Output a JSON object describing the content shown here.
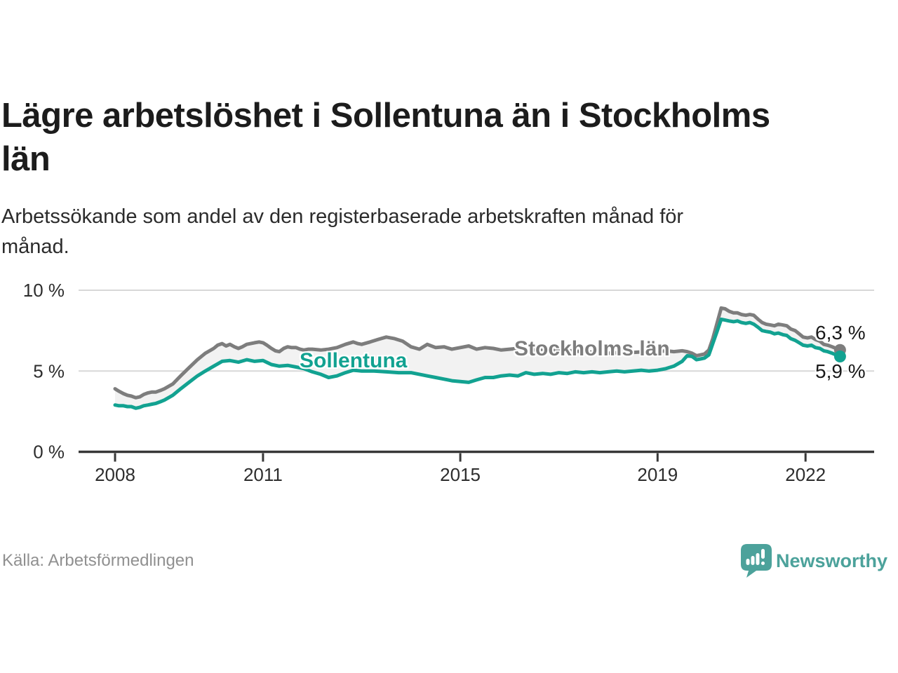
{
  "header": {
    "title_lines": [
      "Lägre arbetslöshet i Sollentuna än i Stockholms",
      "län"
    ],
    "subtitle_lines": [
      "Arbetssökande som andel av den registerbaserade arbetskraften månad för",
      "månad."
    ]
  },
  "footer": {
    "source": "Källa: Arbetsförmedlingen",
    "brand": "Newsworthy"
  },
  "colors": {
    "sollentuna": "#12A291",
    "stockholm": "#7D7D7D",
    "band": "#F2F2F2",
    "grid": "#D8D8D8",
    "axis": "#383838",
    "tick_text": "#2D2D2D",
    "end_label_text": "#1A1A1A",
    "source_text": "#909090",
    "brand_teal": "#4CA29B"
  },
  "chart_data": {
    "type": "line",
    "title": "Lägre arbetslöshet i Sollentuna än i Stockholms län",
    "subtitle": "Arbetssökande som andel av den registerbaserade arbetskraften månad för månad.",
    "x_unit": "decimal year (monthly observations)",
    "y_unit": "percent of registered labour force",
    "xlim": [
      2007.75,
      2023.4
    ],
    "ylim": [
      0,
      10
    ],
    "grid": "horizontal gridlines at 5% and 10%, dark baseline at 0%",
    "legend": "inline labels on lines, value labels at line ends",
    "xticks": [
      {
        "value": 2008,
        "label": "2008"
      },
      {
        "value": 2011,
        "label": "2011"
      },
      {
        "value": 2015,
        "label": "2015"
      },
      {
        "value": 2019,
        "label": "2019"
      },
      {
        "value": 2022,
        "label": "2022"
      }
    ],
    "yticks": [
      {
        "value": 0,
        "label": "0 %"
      },
      {
        "value": 5,
        "label": "5 %"
      },
      {
        "value": 10,
        "label": "10 %"
      }
    ],
    "series": [
      {
        "name": "Stockholms län",
        "color": "#7D7D7D",
        "end_label": "6,3 %",
        "end_value": 6.3,
        "points": [
          [
            2008.0,
            3.9
          ],
          [
            2008.08,
            3.75
          ],
          [
            2008.17,
            3.6
          ],
          [
            2008.25,
            3.5
          ],
          [
            2008.33,
            3.45
          ],
          [
            2008.42,
            3.35
          ],
          [
            2008.5,
            3.4
          ],
          [
            2008.58,
            3.55
          ],
          [
            2008.67,
            3.65
          ],
          [
            2008.75,
            3.7
          ],
          [
            2008.83,
            3.7
          ],
          [
            2008.92,
            3.8
          ],
          [
            2009.0,
            3.9
          ],
          [
            2009.17,
            4.2
          ],
          [
            2009.33,
            4.7
          ],
          [
            2009.5,
            5.2
          ],
          [
            2009.67,
            5.7
          ],
          [
            2009.83,
            6.1
          ],
          [
            2010.0,
            6.4
          ],
          [
            2010.08,
            6.6
          ],
          [
            2010.17,
            6.7
          ],
          [
            2010.25,
            6.55
          ],
          [
            2010.33,
            6.65
          ],
          [
            2010.42,
            6.5
          ],
          [
            2010.5,
            6.4
          ],
          [
            2010.58,
            6.5
          ],
          [
            2010.67,
            6.65
          ],
          [
            2010.75,
            6.7
          ],
          [
            2010.83,
            6.75
          ],
          [
            2010.92,
            6.8
          ],
          [
            2011.0,
            6.75
          ],
          [
            2011.08,
            6.6
          ],
          [
            2011.17,
            6.4
          ],
          [
            2011.25,
            6.25
          ],
          [
            2011.33,
            6.2
          ],
          [
            2011.42,
            6.4
          ],
          [
            2011.5,
            6.5
          ],
          [
            2011.58,
            6.45
          ],
          [
            2011.67,
            6.45
          ],
          [
            2011.75,
            6.35
          ],
          [
            2011.83,
            6.3
          ],
          [
            2011.92,
            6.35
          ],
          [
            2012.0,
            6.35
          ],
          [
            2012.17,
            6.3
          ],
          [
            2012.33,
            6.35
          ],
          [
            2012.5,
            6.45
          ],
          [
            2012.67,
            6.65
          ],
          [
            2012.83,
            6.8
          ],
          [
            2012.92,
            6.7
          ],
          [
            2013.0,
            6.65
          ],
          [
            2013.17,
            6.8
          ],
          [
            2013.33,
            6.95
          ],
          [
            2013.5,
            7.1
          ],
          [
            2013.67,
            7.0
          ],
          [
            2013.83,
            6.85
          ],
          [
            2014.0,
            6.5
          ],
          [
            2014.17,
            6.35
          ],
          [
            2014.33,
            6.65
          ],
          [
            2014.5,
            6.45
          ],
          [
            2014.67,
            6.5
          ],
          [
            2014.83,
            6.35
          ],
          [
            2015.0,
            6.45
          ],
          [
            2015.17,
            6.55
          ],
          [
            2015.33,
            6.35
          ],
          [
            2015.5,
            6.45
          ],
          [
            2015.67,
            6.4
          ],
          [
            2015.83,
            6.3
          ],
          [
            2016.0,
            6.35
          ],
          [
            2016.17,
            6.4
          ],
          [
            2016.33,
            6.3
          ],
          [
            2016.5,
            6.3
          ],
          [
            2016.67,
            6.35
          ],
          [
            2016.83,
            6.3
          ],
          [
            2017.0,
            6.25
          ],
          [
            2017.25,
            6.25
          ],
          [
            2017.5,
            6.2
          ],
          [
            2017.75,
            6.15
          ],
          [
            2018.0,
            6.1
          ],
          [
            2018.25,
            6.15
          ],
          [
            2018.5,
            6.15
          ],
          [
            2018.75,
            6.2
          ],
          [
            2019.0,
            6.2
          ],
          [
            2019.17,
            6.25
          ],
          [
            2019.33,
            6.2
          ],
          [
            2019.5,
            6.25
          ],
          [
            2019.6,
            6.2
          ],
          [
            2019.7,
            6.1
          ],
          [
            2019.79,
            5.95
          ],
          [
            2019.87,
            6.0
          ],
          [
            2019.95,
            6.05
          ],
          [
            2020.04,
            6.3
          ],
          [
            2020.12,
            7.0
          ],
          [
            2020.2,
            7.9
          ],
          [
            2020.29,
            8.9
          ],
          [
            2020.37,
            8.85
          ],
          [
            2020.45,
            8.7
          ],
          [
            2020.54,
            8.6
          ],
          [
            2020.62,
            8.6
          ],
          [
            2020.7,
            8.5
          ],
          [
            2020.79,
            8.45
          ],
          [
            2020.87,
            8.5
          ],
          [
            2020.95,
            8.45
          ],
          [
            2021.04,
            8.2
          ],
          [
            2021.12,
            8.0
          ],
          [
            2021.2,
            7.9
          ],
          [
            2021.29,
            7.85
          ],
          [
            2021.37,
            7.8
          ],
          [
            2021.45,
            7.9
          ],
          [
            2021.54,
            7.85
          ],
          [
            2021.62,
            7.8
          ],
          [
            2021.7,
            7.6
          ],
          [
            2021.79,
            7.5
          ],
          [
            2021.87,
            7.3
          ],
          [
            2021.95,
            7.1
          ],
          [
            2022.04,
            7.05
          ],
          [
            2022.12,
            7.1
          ],
          [
            2022.2,
            6.95
          ],
          [
            2022.29,
            6.85
          ],
          [
            2022.37,
            6.65
          ],
          [
            2022.45,
            6.6
          ],
          [
            2022.54,
            6.5
          ],
          [
            2022.62,
            6.4
          ],
          [
            2022.7,
            6.3
          ]
        ]
      },
      {
        "name": "Sollentuna",
        "color": "#12A291",
        "end_label": "5,9 %",
        "end_value": 5.9,
        "points": [
          [
            2008.0,
            2.9
          ],
          [
            2008.08,
            2.85
          ],
          [
            2008.17,
            2.85
          ],
          [
            2008.25,
            2.8
          ],
          [
            2008.33,
            2.8
          ],
          [
            2008.42,
            2.7
          ],
          [
            2008.5,
            2.75
          ],
          [
            2008.58,
            2.85
          ],
          [
            2008.67,
            2.9
          ],
          [
            2008.75,
            2.95
          ],
          [
            2008.83,
            3.0
          ],
          [
            2008.92,
            3.1
          ],
          [
            2009.0,
            3.2
          ],
          [
            2009.17,
            3.5
          ],
          [
            2009.33,
            3.9
          ],
          [
            2009.5,
            4.3
          ],
          [
            2009.67,
            4.7
          ],
          [
            2009.83,
            5.0
          ],
          [
            2010.0,
            5.3
          ],
          [
            2010.17,
            5.6
          ],
          [
            2010.33,
            5.65
          ],
          [
            2010.5,
            5.55
          ],
          [
            2010.67,
            5.7
          ],
          [
            2010.83,
            5.6
          ],
          [
            2011.0,
            5.65
          ],
          [
            2011.17,
            5.4
          ],
          [
            2011.33,
            5.3
          ],
          [
            2011.5,
            5.35
          ],
          [
            2011.67,
            5.25
          ],
          [
            2011.83,
            5.15
          ],
          [
            2012.0,
            4.95
          ],
          [
            2012.17,
            4.8
          ],
          [
            2012.33,
            4.6
          ],
          [
            2012.5,
            4.7
          ],
          [
            2012.67,
            4.9
          ],
          [
            2012.83,
            5.05
          ],
          [
            2013.0,
            5.0
          ],
          [
            2013.25,
            5.0
          ],
          [
            2013.5,
            4.95
          ],
          [
            2013.75,
            4.9
          ],
          [
            2014.0,
            4.9
          ],
          [
            2014.17,
            4.8
          ],
          [
            2014.33,
            4.7
          ],
          [
            2014.5,
            4.6
          ],
          [
            2014.67,
            4.5
          ],
          [
            2014.83,
            4.4
          ],
          [
            2015.0,
            4.35
          ],
          [
            2015.17,
            4.3
          ],
          [
            2015.33,
            4.45
          ],
          [
            2015.5,
            4.6
          ],
          [
            2015.67,
            4.6
          ],
          [
            2015.83,
            4.7
          ],
          [
            2016.0,
            4.75
          ],
          [
            2016.17,
            4.7
          ],
          [
            2016.33,
            4.9
          ],
          [
            2016.5,
            4.8
          ],
          [
            2016.67,
            4.85
          ],
          [
            2016.83,
            4.8
          ],
          [
            2017.0,
            4.9
          ],
          [
            2017.17,
            4.85
          ],
          [
            2017.33,
            4.95
          ],
          [
            2017.5,
            4.9
          ],
          [
            2017.67,
            4.95
          ],
          [
            2017.83,
            4.9
          ],
          [
            2018.0,
            4.95
          ],
          [
            2018.17,
            5.0
          ],
          [
            2018.33,
            4.95
          ],
          [
            2018.5,
            5.0
          ],
          [
            2018.67,
            5.05
          ],
          [
            2018.83,
            5.0
          ],
          [
            2019.0,
            5.05
          ],
          [
            2019.17,
            5.15
          ],
          [
            2019.33,
            5.3
          ],
          [
            2019.5,
            5.6
          ],
          [
            2019.6,
            5.95
          ],
          [
            2019.7,
            5.9
          ],
          [
            2019.79,
            5.7
          ],
          [
            2019.87,
            5.75
          ],
          [
            2019.95,
            5.8
          ],
          [
            2020.04,
            6.0
          ],
          [
            2020.12,
            6.7
          ],
          [
            2020.2,
            7.4
          ],
          [
            2020.29,
            8.2
          ],
          [
            2020.37,
            8.15
          ],
          [
            2020.45,
            8.1
          ],
          [
            2020.54,
            8.05
          ],
          [
            2020.62,
            8.1
          ],
          [
            2020.7,
            8.0
          ],
          [
            2020.79,
            7.95
          ],
          [
            2020.87,
            8.0
          ],
          [
            2020.95,
            7.9
          ],
          [
            2021.04,
            7.7
          ],
          [
            2021.12,
            7.5
          ],
          [
            2021.2,
            7.45
          ],
          [
            2021.29,
            7.4
          ],
          [
            2021.37,
            7.3
          ],
          [
            2021.45,
            7.35
          ],
          [
            2021.54,
            7.25
          ],
          [
            2021.62,
            7.2
          ],
          [
            2021.7,
            7.0
          ],
          [
            2021.79,
            6.9
          ],
          [
            2021.87,
            6.75
          ],
          [
            2021.95,
            6.6
          ],
          [
            2022.04,
            6.55
          ],
          [
            2022.12,
            6.6
          ],
          [
            2022.2,
            6.45
          ],
          [
            2022.29,
            6.4
          ],
          [
            2022.37,
            6.25
          ],
          [
            2022.45,
            6.2
          ],
          [
            2022.54,
            6.1
          ],
          [
            2022.62,
            6.0
          ],
          [
            2022.7,
            5.9
          ]
        ]
      }
    ]
  }
}
